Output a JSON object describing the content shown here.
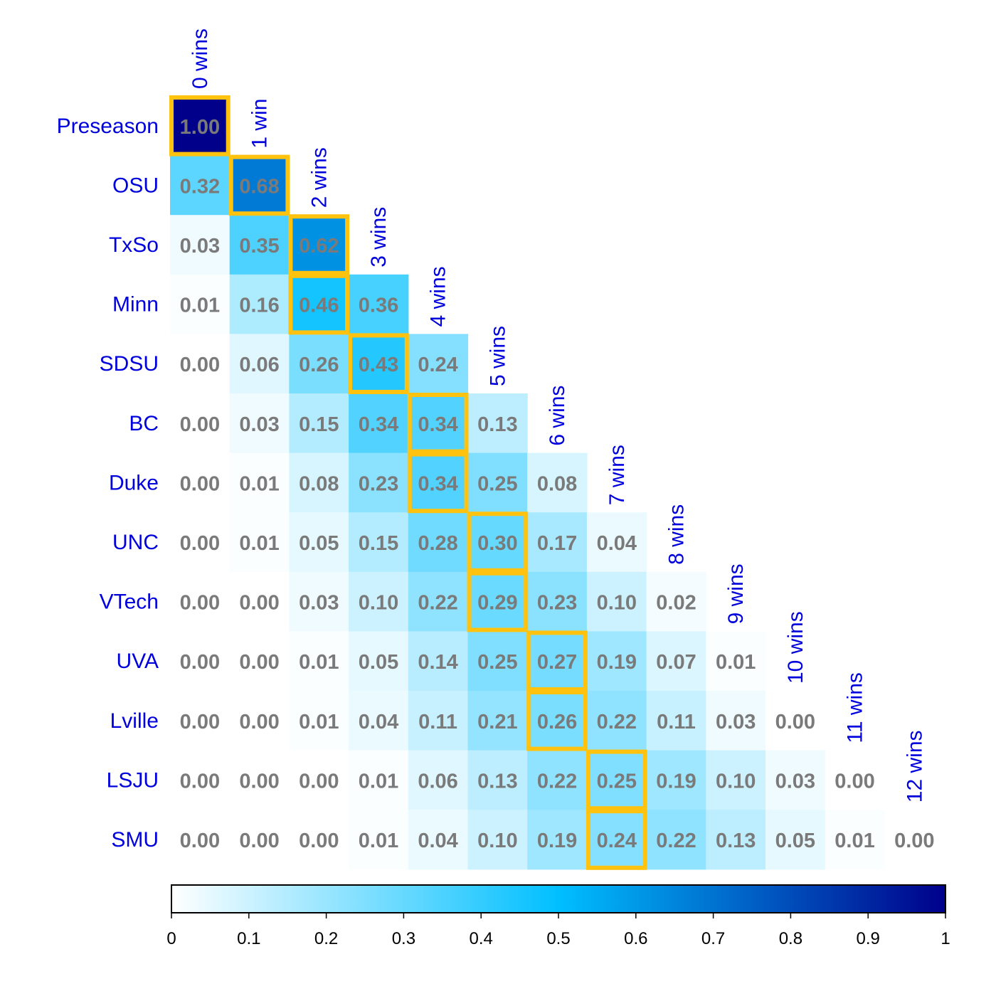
{
  "chart_data": {
    "type": "heatmap",
    "title": "",
    "rows": [
      "Preseason",
      "OSU",
      "TxSo",
      "Minn",
      "SDSU",
      "BC",
      "Duke",
      "UNC",
      "VTech",
      "UVA",
      "Lville",
      "LSJU",
      "SMU"
    ],
    "columns": [
      "0 wins",
      "1 win",
      "2 wins",
      "3 wins",
      "4 wins",
      "5 wins",
      "6 wins",
      "7 wins",
      "8 wins",
      "9 wins",
      "10 wins",
      "11 wins",
      "12 wins"
    ],
    "values": [
      [
        1.0
      ],
      [
        0.32,
        0.68
      ],
      [
        0.03,
        0.35,
        0.62
      ],
      [
        0.01,
        0.16,
        0.46,
        0.36
      ],
      [
        0.0,
        0.06,
        0.26,
        0.43,
        0.24
      ],
      [
        0.0,
        0.03,
        0.15,
        0.34,
        0.34,
        0.13
      ],
      [
        0.0,
        0.01,
        0.08,
        0.23,
        0.34,
        0.25,
        0.08
      ],
      [
        0.0,
        0.01,
        0.05,
        0.15,
        0.28,
        0.3,
        0.17,
        0.04
      ],
      [
        0.0,
        0.0,
        0.03,
        0.1,
        0.22,
        0.29,
        0.23,
        0.1,
        0.02
      ],
      [
        0.0,
        0.0,
        0.01,
        0.05,
        0.14,
        0.25,
        0.27,
        0.19,
        0.07,
        0.01
      ],
      [
        0.0,
        0.0,
        0.01,
        0.04,
        0.11,
        0.21,
        0.26,
        0.22,
        0.11,
        0.03,
        0.0
      ],
      [
        0.0,
        0.0,
        0.0,
        0.01,
        0.06,
        0.13,
        0.22,
        0.25,
        0.19,
        0.1,
        0.03,
        0.0
      ],
      [
        0.0,
        0.0,
        0.0,
        0.01,
        0.04,
        0.1,
        0.19,
        0.24,
        0.22,
        0.13,
        0.05,
        0.01,
        0.0
      ]
    ],
    "highlighted_cells": [
      [
        0,
        0
      ],
      [
        1,
        1
      ],
      [
        2,
        2
      ],
      [
        3,
        2
      ],
      [
        4,
        3
      ],
      [
        5,
        4
      ],
      [
        6,
        4
      ],
      [
        7,
        5
      ],
      [
        8,
        5
      ],
      [
        9,
        6
      ],
      [
        10,
        6
      ],
      [
        11,
        7
      ],
      [
        12,
        7
      ]
    ],
    "highlight_color": "#ffc20e",
    "value_text_color": "#7a7a7a",
    "label_color": "#0000dd",
    "colorscale": [
      "#ffffff",
      "#00bfff",
      "#00008b"
    ],
    "colorbar": {
      "range": [
        0,
        1
      ],
      "ticks": [
        "0",
        "0.1",
        "0.2",
        "0.3",
        "0.4",
        "0.5",
        "0.6",
        "0.7",
        "0.8",
        "0.9",
        "1"
      ]
    }
  }
}
